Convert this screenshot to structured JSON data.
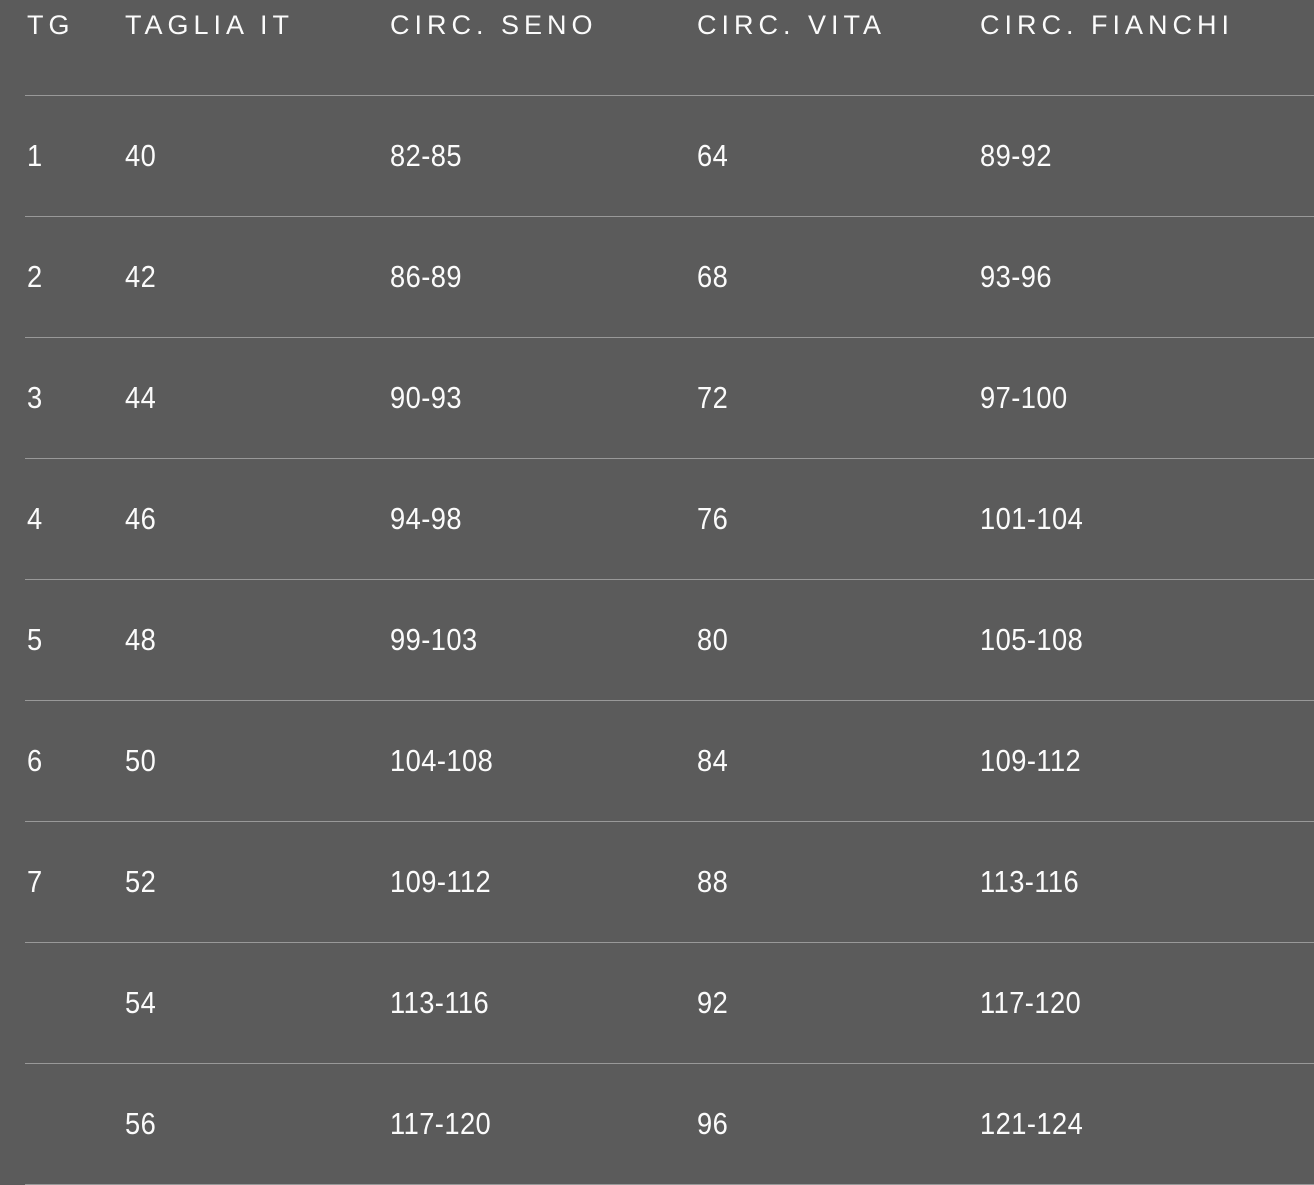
{
  "table": {
    "title": "size-chart",
    "columns": [
      {
        "key": "tg",
        "label": "TG"
      },
      {
        "key": "taglia_it",
        "label": "TAGLIA IT"
      },
      {
        "key": "circ_seno",
        "label": "CIRC. SENO"
      },
      {
        "key": "circ_vita",
        "label": "CIRC. VITA"
      },
      {
        "key": "circ_fianchi",
        "label": "CIRC. FIANCHI"
      }
    ],
    "rows": [
      [
        "1",
        "40",
        "82-85",
        "64",
        "89-92"
      ],
      [
        "2",
        "42",
        "86-89",
        "68",
        "93-96"
      ],
      [
        "3",
        "44",
        "90-93",
        "72",
        "97-100"
      ],
      [
        "4",
        "46",
        "94-98",
        "76",
        "101-104"
      ],
      [
        "5",
        "48",
        "99-103",
        "80",
        "105-108"
      ],
      [
        "6",
        "50",
        "104-108",
        "84",
        "109-112"
      ],
      [
        "7",
        "52",
        "109-112",
        "88",
        "113-116"
      ],
      [
        "",
        "54",
        "113-116",
        "92",
        "117-120"
      ],
      [
        "",
        "56",
        "117-120",
        "96",
        "121-124"
      ]
    ]
  },
  "colors": {
    "background": "#5b5b5b",
    "text": "#fbfbfb",
    "divider": "rgba(255,255,255,0.38)"
  }
}
